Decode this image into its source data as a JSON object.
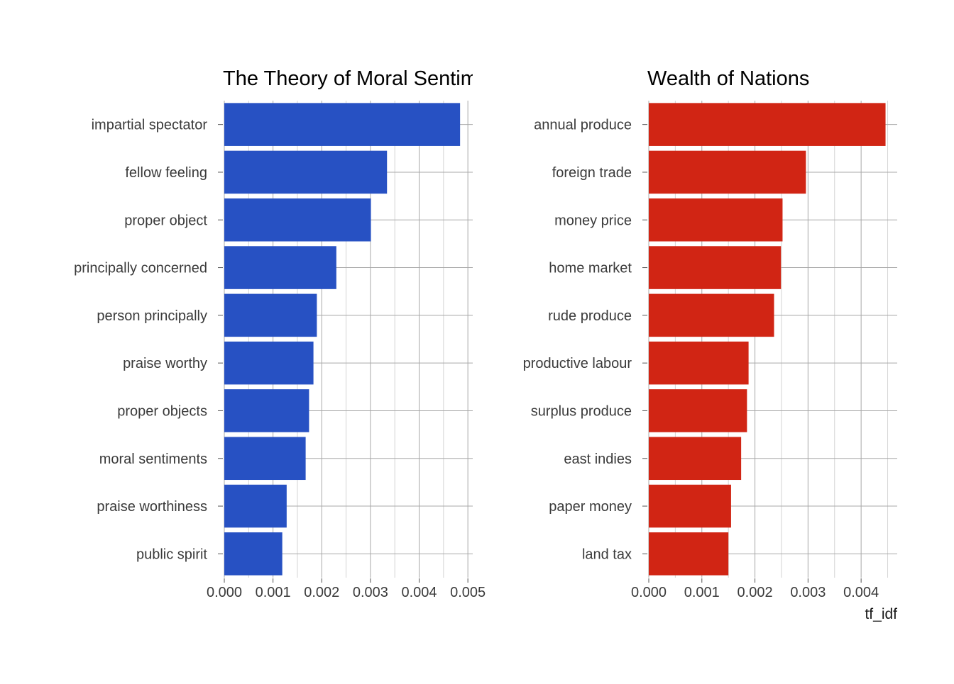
{
  "chart_data": [
    {
      "type": "bar",
      "orientation": "horizontal",
      "title": "The Theory of Moral Sentimen",
      "color": "#2751c3",
      "categories": [
        "impartial spectator",
        "fellow feeling",
        "proper object",
        "principally concerned",
        "person principally",
        "praise worthy",
        "proper objects",
        "moral sentiments",
        "praise worthiness",
        "public spirit"
      ],
      "values": [
        0.00484,
        0.00334,
        0.00301,
        0.0023,
        0.0019,
        0.00183,
        0.00174,
        0.00167,
        0.00128,
        0.00119
      ],
      "xlim": [
        0,
        0.0051
      ],
      "xticks": [
        "0.000",
        "0.001",
        "0.002",
        "0.003",
        "0.004",
        "0.005"
      ],
      "xlabel": "",
      "grid": true
    },
    {
      "type": "bar",
      "orientation": "horizontal",
      "title": "Wealth of Nations",
      "color": "#d12514",
      "categories": [
        "annual produce",
        "foreign trade",
        "money price",
        "home market",
        "rude produce",
        "productive labour",
        "surplus produce",
        "east indies",
        "paper money",
        "land tax"
      ],
      "values": [
        0.00446,
        0.00296,
        0.00252,
        0.00249,
        0.00236,
        0.00188,
        0.00185,
        0.00174,
        0.00155,
        0.0015
      ],
      "xlim": [
        0,
        0.00468
      ],
      "xticks": [
        "0.000",
        "0.001",
        "0.002",
        "0.003",
        "0.004"
      ],
      "xlabel": "tf_idf",
      "grid": true
    }
  ]
}
